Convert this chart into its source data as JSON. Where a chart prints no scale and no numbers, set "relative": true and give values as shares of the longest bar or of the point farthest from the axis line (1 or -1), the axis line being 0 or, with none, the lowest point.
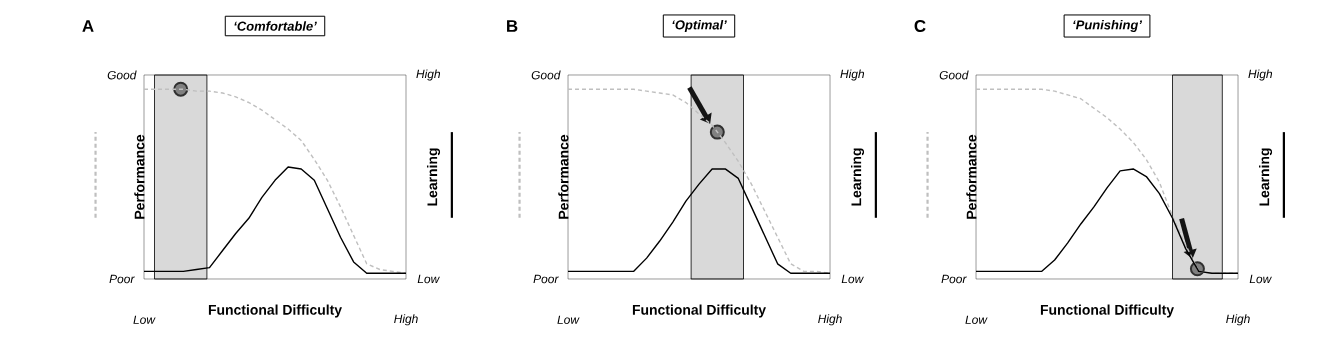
{
  "chart_data": [
    {
      "type": "line",
      "relative": true,
      "title": "‘Comfortable’",
      "annotations": [
        "A",
        "Good",
        "Poor",
        "High",
        "Low",
        "Low",
        "High"
      ],
      "xlabel": "Functional Difficulty",
      "ylabel": "Performance",
      "y2label": "Learning",
      "categories": [
        null,
        null,
        null,
        null,
        null,
        null,
        null,
        null,
        null,
        null,
        null,
        null,
        null,
        null,
        null,
        null,
        null,
        null,
        null,
        null,
        null
      ],
      "series": [
        {
          "values": [
            1,
            1,
            1,
            1,
            0.99,
            0.99,
            0.98,
            0.96,
            0.93,
            0.89,
            0.84,
            0.79,
            0.73,
            0.63,
            0.52,
            0.38,
            0.23,
            0.08,
            0.05,
            0.04,
            0.03
          ],
          "color": "#bfbfbf",
          "line_style": "dashed"
        },
        {
          "values": [
            0.04,
            0.04,
            0.04,
            0.04,
            0.05,
            0.06,
            0.15,
            0.24,
            0.32,
            0.43,
            0.52,
            0.59,
            0.58,
            0.52,
            0.37,
            0.22,
            0.09,
            0.03,
            0.03,
            0.03,
            0.03
          ],
          "color": "#000000",
          "line_style": "solid"
        }
      ]
    },
    {
      "type": "line",
      "relative": true,
      "title": "‘Optimal’",
      "annotations": [
        "B",
        "Good",
        "Poor",
        "High",
        "Low",
        "Low",
        "High"
      ],
      "xlabel": "Functional Difficulty",
      "ylabel": "Performance",
      "y2label": "Learning",
      "categories": [
        null,
        null,
        null,
        null,
        null,
        null,
        null,
        null,
        null,
        null,
        null,
        null,
        null,
        null,
        null,
        null,
        null,
        null,
        null,
        null,
        null
      ],
      "series": [
        {
          "values": [
            1,
            1,
            1,
            1,
            1,
            1,
            0.99,
            0.98,
            0.97,
            0.93,
            0.87,
            0.81,
            0.72,
            0.62,
            0.5,
            0.36,
            0.22,
            0.08,
            0.04,
            0.04,
            0.03
          ],
          "color": "#bfbfbf",
          "line_style": "dashed"
        },
        {
          "values": [
            0.04,
            0.04,
            0.04,
            0.04,
            0.04,
            0.04,
            0.11,
            0.2,
            0.3,
            0.41,
            0.5,
            0.58,
            0.58,
            0.53,
            0.38,
            0.23,
            0.08,
            0.03,
            0.03,
            0.03,
            0.03
          ],
          "color": "#000000",
          "line_style": "solid"
        }
      ]
    },
    {
      "type": "line",
      "relative": true,
      "title": "‘Punishing’",
      "annotations": [
        "C",
        "Good",
        "Poor",
        "High",
        "Low",
        "Low",
        "High"
      ],
      "xlabel": "Functional Difficulty",
      "ylabel": "Performance",
      "y2label": "Learning",
      "categories": [
        null,
        null,
        null,
        null,
        null,
        null,
        null,
        null,
        null,
        null,
        null,
        null,
        null,
        null,
        null,
        null,
        null,
        null,
        null,
        null,
        null
      ],
      "series": [
        {
          "values": [
            1,
            1,
            1,
            1,
            1,
            1,
            0.99,
            0.97,
            0.95,
            0.9,
            0.85,
            0.79,
            0.72,
            0.63,
            0.51,
            0.33,
            0.18,
            0.04,
            0.03,
            0.03,
            0.03
          ],
          "color": "#bfbfbf",
          "line_style": "dashed"
        },
        {
          "values": [
            0.04,
            0.04,
            0.04,
            0.04,
            0.04,
            0.04,
            0.1,
            0.19,
            0.29,
            0.38,
            0.48,
            0.57,
            0.58,
            0.54,
            0.45,
            0.32,
            0.16,
            0.04,
            0.03,
            0.03,
            0.03
          ],
          "color": "#000000",
          "line_style": "solid"
        }
      ]
    }
  ]
}
